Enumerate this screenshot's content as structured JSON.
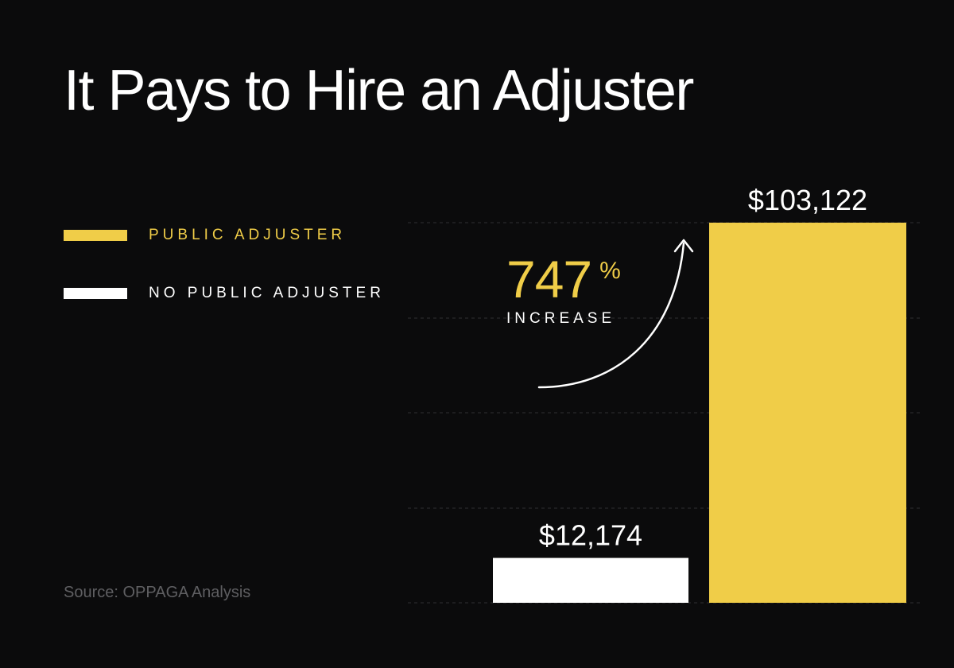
{
  "title": "It Pays to Hire an Adjuster",
  "source": "Source: OPPAGA Analysis",
  "colors": {
    "background": "#0b0b0c",
    "public_adjuster": "#f0cd48",
    "no_public_adjuster": "#ffffff",
    "source_text": "#5f5f62"
  },
  "legend": {
    "items": [
      {
        "label": "PUBLIC ADJUSTER",
        "color": "#f0cd48"
      },
      {
        "label": "NO PUBLIC ADJUSTER",
        "color": "#ffffff"
      }
    ]
  },
  "annotation": {
    "value": "747",
    "unit": "%",
    "caption": "INCREASE",
    "icon": "curved-arrow-icon"
  },
  "chart_data": {
    "type": "bar",
    "categories": [
      "No Public Adjuster",
      "Public Adjuster"
    ],
    "values": [
      12174,
      103122
    ],
    "value_labels": [
      "$12,174",
      "$103,122"
    ],
    "colors": [
      "#ffffff",
      "#f0cd48"
    ],
    "ylim": [
      0,
      103122
    ],
    "grid": true,
    "legend_position": "top-left",
    "increase_percent": 747
  }
}
